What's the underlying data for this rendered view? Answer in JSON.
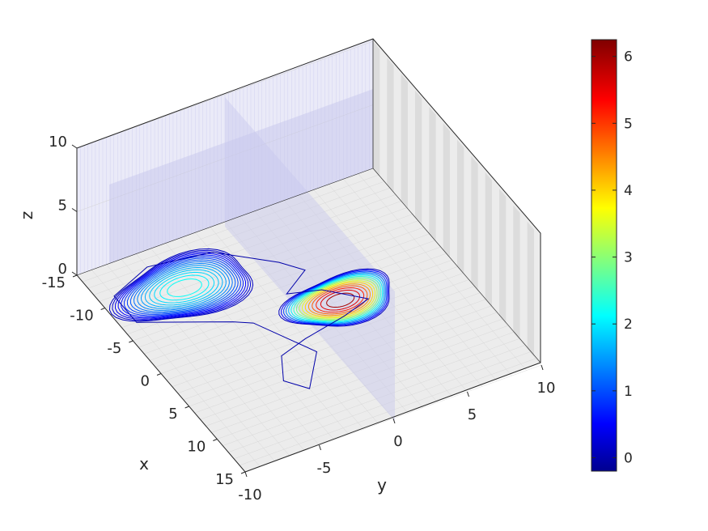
{
  "chart_data": {
    "type": "3d-contour",
    "title": "",
    "xlabel": "x",
    "ylabel": "y",
    "zlabel": "z",
    "x_ticks": [
      "-15",
      "-10",
      "-5",
      "0",
      "5",
      "10",
      "15"
    ],
    "y_ticks": [
      "-10",
      "-5",
      "0",
      "5",
      "10"
    ],
    "z_ticks": [
      "0",
      "5",
      "10"
    ],
    "xlim": [
      -15,
      15
    ],
    "ylim": [
      -10,
      10
    ],
    "zlim": [
      0,
      10
    ],
    "colorbar": {
      "colormap": "jet",
      "range": [
        -0.2,
        6.25
      ],
      "ticks": [
        "0",
        "1",
        "2",
        "3",
        "4",
        "5",
        "6"
      ]
    },
    "peaks": [
      {
        "x": -9,
        "y": -5,
        "value": 2.2
      },
      {
        "x": -1,
        "y": 2.5,
        "value": 6.2
      }
    ],
    "contour_plane_z": 0,
    "slice_planes": [
      {
        "axis": "x",
        "value": -10
      },
      {
        "axis": "y",
        "value": 0
      }
    ],
    "grid": true
  }
}
